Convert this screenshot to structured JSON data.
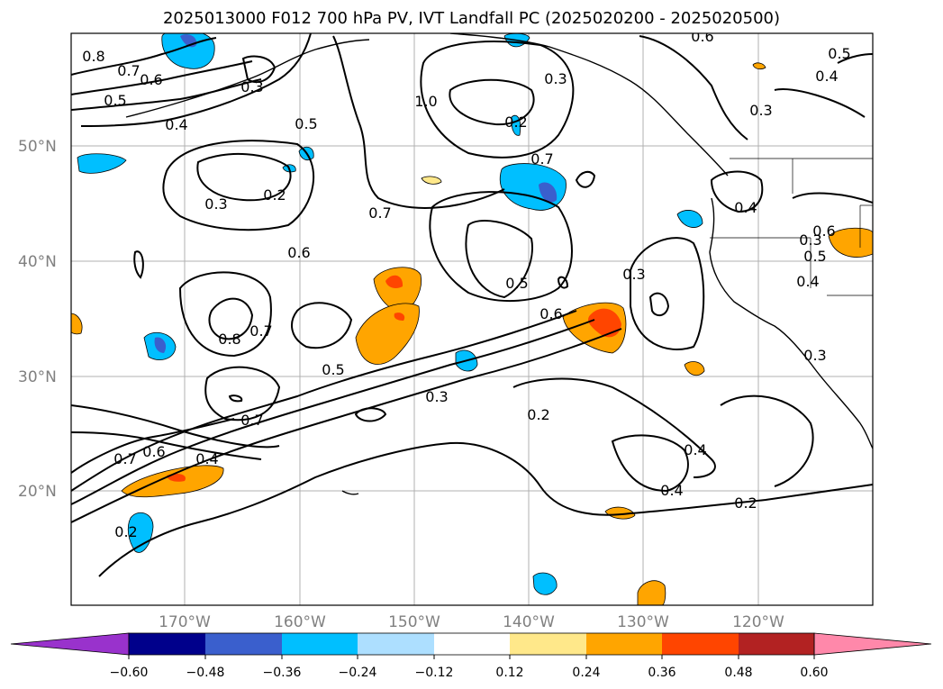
{
  "title": "2025013000 F012 700 hPa PV, IVT Landfall PC (2025020200 - 2025020500)",
  "lat_labels": [
    "50°N",
    "40°N",
    "30°N",
    "20°N"
  ],
  "lon_labels": [
    "170°W",
    "160°W",
    "150°W",
    "140°W",
    "130°W",
    "120°W"
  ],
  "contour_labels": [
    "0.8",
    "0.7",
    "0.6",
    "0.5",
    "0.4",
    "0.3",
    "1.0",
    "0.5",
    "0.2",
    "0.3",
    "0.2",
    "0.7",
    "0.6",
    "0.7",
    "0.8",
    "0.7",
    "0.5",
    "0.3",
    "0.5",
    "0.6",
    "0.3",
    "0.7",
    "0.2",
    "0.4",
    "0.4",
    "0.2",
    "0.7",
    "0.6",
    "0.4",
    "0.2",
    "0.3",
    "0.6",
    "0.3",
    "0.4",
    "0.5",
    "0.4",
    "0.3",
    "0.6",
    "0.5",
    "0.4",
    "0.3"
  ],
  "colorbar": {
    "ticks": [
      "−0.60",
      "−0.48",
      "−0.36",
      "−0.24",
      "−0.12",
      "0.12",
      "0.24",
      "0.36",
      "0.48",
      "0.60"
    ],
    "colors": [
      "#9932CC",
      "#00008B",
      "#3A5FCD",
      "#00BFFF",
      "#ADDFFF",
      "#FFFFFF",
      "#FFE88A",
      "#FFA500",
      "#FF4500",
      "#B22222",
      "#FF88AA"
    ]
  },
  "chart_data": {
    "type": "heatmap",
    "variable": "700 hPa PV, IVT Landfall PC",
    "lat_range": [
      10,
      60
    ],
    "lon_range": [
      -180,
      -110
    ],
    "lat_ticks": [
      50,
      40,
      30,
      20
    ],
    "lon_ticks": [
      -170,
      -160,
      -150,
      -140,
      -130,
      -120
    ],
    "grid": true,
    "colorbar_range": [
      -0.6,
      0.6
    ]
  }
}
